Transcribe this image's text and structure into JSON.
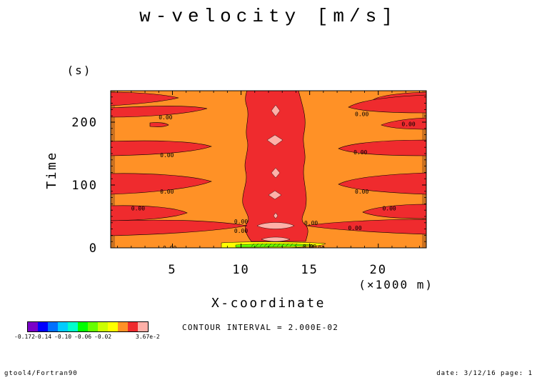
{
  "title": "w-velocity [m/s]",
  "contour_interval": "CONTOUR INTERVAL = 2.000E-02",
  "footer": {
    "left": "gtool4/Fortran90",
    "right": "date: 3/12/16 page: 1"
  },
  "colors": {
    "background_level": "#ff9126",
    "positive_level": "#ef2b2e",
    "peak_level": "#ffb0a8",
    "negative_level": "#ffff00",
    "edge_band": "#8a4a1a"
  },
  "colorbar": {
    "colors": [
      "#7a00c8",
      "#0000ff",
      "#0070ff",
      "#00ccff",
      "#00ffcc",
      "#00ff00",
      "#66ff00",
      "#ccff00",
      "#ffff00",
      "#ff9126",
      "#ef2b2e",
      "#ffb0a8"
    ],
    "labels": [
      "-0.172",
      "-0.14",
      "-0.10",
      "-0.06",
      "-0.02",
      "3.67e-2"
    ]
  },
  "chart_data": {
    "type": "heatmap",
    "title": "w-velocity [m/s]",
    "xlabel": "X-coordinate",
    "xunit": "(×1000 m)",
    "ylabel": "Time",
    "yunit": "(s)",
    "xlim": [
      0.5,
      23.5
    ],
    "ylim": [
      0,
      250
    ],
    "xticks": [
      5,
      10,
      15,
      20
    ],
    "yticks": [
      0,
      100,
      200
    ],
    "contour_level_label": "0.00",
    "contour_labels": [
      {
        "x": 4.8,
        "y": 0,
        "text": "0.00"
      },
      {
        "x": 15.6,
        "y": 0,
        "text": "0.00"
      },
      {
        "x": 2.5,
        "y": 63,
        "text": "0.00"
      },
      {
        "x": 20.8,
        "y": 63,
        "text": "0.00"
      },
      {
        "x": 4.6,
        "y": 90,
        "text": "0.00"
      },
      {
        "x": 18.8,
        "y": 90,
        "text": "0.00"
      },
      {
        "x": 4.6,
        "y": 148,
        "text": "0.00"
      },
      {
        "x": 18.7,
        "y": 152,
        "text": "0.00"
      },
      {
        "x": 4.5,
        "y": 208,
        "text": "0.00"
      },
      {
        "x": 18.8,
        "y": 213,
        "text": "0.00"
      },
      {
        "x": 22.2,
        "y": 197,
        "text": "0.00"
      },
      {
        "x": 10.0,
        "y": 42,
        "text": "0.00"
      },
      {
        "x": 10.0,
        "y": 27,
        "text": "0.00"
      },
      {
        "x": 15.1,
        "y": 40,
        "text": "0.00"
      },
      {
        "x": 18.3,
        "y": 32,
        "text": "0.00"
      },
      {
        "x": 15.0,
        "y": 2,
        "text": "0.00"
      }
    ]
  }
}
